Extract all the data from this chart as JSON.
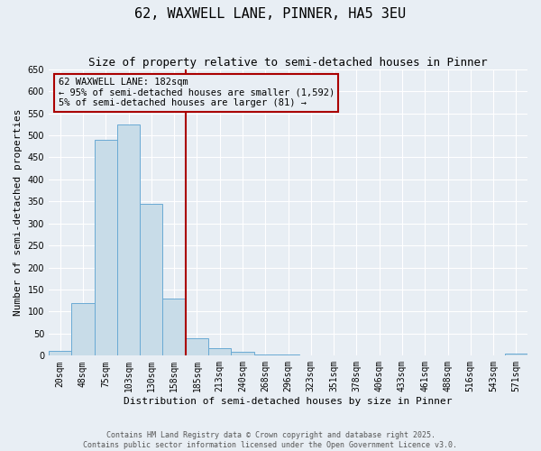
{
  "title": "62, WAXWELL LANE, PINNER, HA5 3EU",
  "subtitle": "Size of property relative to semi-detached houses in Pinner",
  "xlabel": "Distribution of semi-detached houses by size in Pinner",
  "ylabel": "Number of semi-detached properties",
  "categories": [
    "20sqm",
    "48sqm",
    "75sqm",
    "103sqm",
    "130sqm",
    "158sqm",
    "185sqm",
    "213sqm",
    "240sqm",
    "268sqm",
    "296sqm",
    "323sqm",
    "351sqm",
    "378sqm",
    "406sqm",
    "433sqm",
    "461sqm",
    "488sqm",
    "516sqm",
    "543sqm",
    "571sqm"
  ],
  "values": [
    10,
    120,
    490,
    525,
    345,
    130,
    40,
    18,
    8,
    3,
    2,
    1,
    0,
    0,
    0,
    0,
    0,
    0,
    0,
    0,
    5
  ],
  "bar_color": "#c8dce8",
  "bar_edge_color": "#6aaad4",
  "ylim": [
    0,
    650
  ],
  "yticks": [
    0,
    50,
    100,
    150,
    200,
    250,
    300,
    350,
    400,
    450,
    500,
    550,
    600,
    650
  ],
  "vline_x_index": 6,
  "vline_color": "#aa0000",
  "annotation_text": "62 WAXWELL LANE: 182sqm\n← 95% of semi-detached houses are smaller (1,592)\n5% of semi-detached houses are larger (81) →",
  "footer_line1": "Contains HM Land Registry data © Crown copyright and database right 2025.",
  "footer_line2": "Contains public sector information licensed under the Open Government Licence v3.0.",
  "bg_color": "#e8eef4",
  "grid_color": "#ffffff",
  "title_fontsize": 11,
  "subtitle_fontsize": 9,
  "label_fontsize": 8,
  "tick_fontsize": 7,
  "footer_fontsize": 6,
  "annot_fontsize": 7.5
}
